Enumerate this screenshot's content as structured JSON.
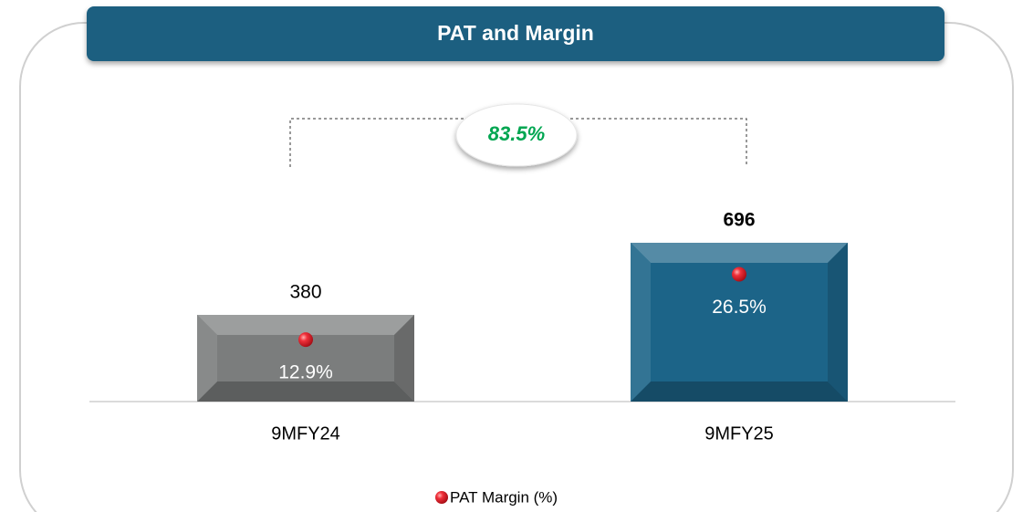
{
  "chart_data": {
    "type": "bar",
    "title": "PAT and Margin",
    "categories": [
      "9MFY24",
      "9MFY25"
    ],
    "values": [
      380,
      696
    ],
    "colors": [
      "#7b7d7d",
      "#1c6488"
    ],
    "ylim": [
      0,
      800
    ],
    "series": [
      {
        "name": "PAT Margin (%)",
        "color": "#e3202b",
        "values": [
          12.9,
          26.5
        ],
        "value_labels": [
          "12.9%",
          "26.5%"
        ],
        "axis": "y2"
      }
    ],
    "y2lim": [
      0,
      38
    ],
    "annotations": [
      {
        "text": "83.5%",
        "color": "#00a651"
      }
    ],
    "legend": "bottom"
  }
}
